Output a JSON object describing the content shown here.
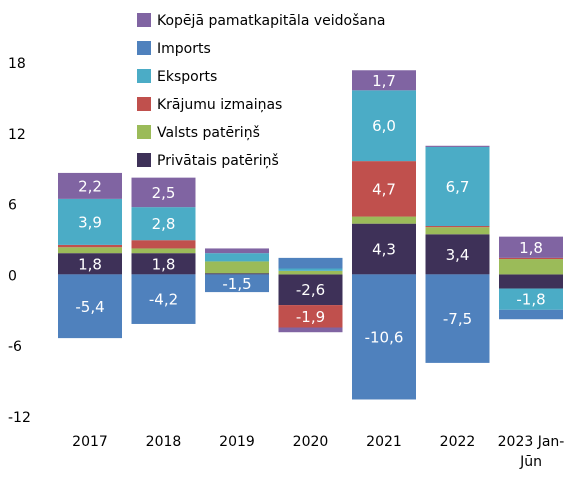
{
  "chart_data": {
    "type": "stacked_bar",
    "categories": [
      "2017",
      "2018",
      "2019",
      "2020",
      "2021",
      "2022",
      "2023 Jan-Jūn"
    ],
    "series": [
      {
        "name": "Privātais patēriņš",
        "color": "#3e3158",
        "values": [
          1.8,
          1.8,
          0.1,
          -2.6,
          4.3,
          3.4,
          -1.2
        ],
        "value_labels": [
          "1,8",
          "1,8",
          null,
          "-2,6",
          "4,3",
          "3,4",
          null
        ]
      },
      {
        "name": "Valsts patēriņš",
        "color": "#9bbb59",
        "values": [
          0.5,
          0.4,
          1.0,
          0.3,
          0.6,
          0.6,
          1.3
        ],
        "value_labels": [
          null,
          null,
          null,
          null,
          null,
          null,
          null
        ]
      },
      {
        "name": "Krājumu izmaiņas",
        "color": "#c0504d",
        "values": [
          0.2,
          0.7,
          0,
          -1.9,
          4.7,
          0.1,
          0.1
        ],
        "value_labels": [
          null,
          null,
          null,
          "-1,9",
          "4,7",
          null,
          null
        ]
      },
      {
        "name": "Eksports",
        "color": "#4bacc6",
        "values": [
          3.9,
          2.8,
          0.7,
          0.2,
          6.0,
          6.7,
          -1.8
        ],
        "value_labels": [
          "3,9",
          "2,8",
          null,
          null,
          "6,0",
          "6,7",
          "-1,8"
        ]
      },
      {
        "name": "Imports",
        "color": "#4f81bd",
        "values": [
          -5.4,
          -4.2,
          -1.5,
          0.9,
          -10.6,
          -7.5,
          -0.8
        ],
        "value_labels": [
          "-5,4",
          "-4,2",
          "-1,5",
          null,
          "-10,6",
          "-7,5",
          null
        ]
      },
      {
        "name": "Kopējā pamatkapitāla veidošana",
        "color": "#8064a2",
        "values": [
          2.2,
          2.5,
          0.4,
          -0.4,
          1.7,
          0.1,
          1.8
        ],
        "value_labels": [
          "2,2",
          "2,5",
          null,
          null,
          "1,7",
          null,
          "1,8"
        ]
      }
    ],
    "ylim": [
      -12,
      18
    ],
    "yticks": [
      18,
      12,
      6,
      0,
      -6,
      -12
    ],
    "legend": "top-left"
  }
}
